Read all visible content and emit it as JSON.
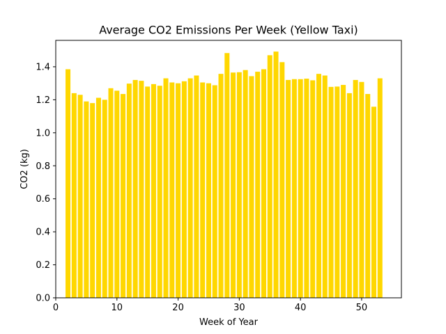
{
  "chart_data": {
    "type": "bar",
    "title": "Average CO2 Emissions Per Week (Yellow Taxi)",
    "xlabel": "Week of Year",
    "ylabel": "CO2 (kg)",
    "bar_color": "#FFD700",
    "xlim": [
      0,
      56.5
    ],
    "ylim": [
      0,
      1.56
    ],
    "x_ticks": [
      0,
      10,
      20,
      30,
      40,
      50
    ],
    "y_ticks": [
      0.0,
      0.2,
      0.4,
      0.6,
      0.8,
      1.0,
      1.2,
      1.4
    ],
    "x_tick_labels": [
      "0",
      "10",
      "20",
      "30",
      "40",
      "50"
    ],
    "y_tick_labels": [
      "0.0",
      "0.2",
      "0.4",
      "0.6",
      "0.8",
      "1.0",
      "1.2",
      "1.4"
    ],
    "grid": false,
    "x": [
      2,
      3,
      4,
      5,
      6,
      7,
      8,
      9,
      10,
      11,
      12,
      13,
      14,
      15,
      16,
      17,
      18,
      19,
      20,
      21,
      22,
      23,
      24,
      25,
      26,
      27,
      28,
      29,
      30,
      31,
      32,
      33,
      34,
      35,
      36,
      37,
      38,
      39,
      40,
      41,
      42,
      43,
      44,
      45,
      46,
      47,
      48,
      49,
      50,
      51,
      52,
      53
    ],
    "values": [
      1.385,
      1.24,
      1.23,
      1.19,
      1.18,
      1.212,
      1.2,
      1.27,
      1.255,
      1.235,
      1.298,
      1.32,
      1.315,
      1.28,
      1.295,
      1.285,
      1.33,
      1.305,
      1.3,
      1.312,
      1.33,
      1.347,
      1.305,
      1.3,
      1.288,
      1.357,
      1.483,
      1.365,
      1.367,
      1.38,
      1.343,
      1.37,
      1.385,
      1.47,
      1.492,
      1.428,
      1.32,
      1.325,
      1.325,
      1.328,
      1.318,
      1.357,
      1.347,
      1.278,
      1.28,
      1.29,
      1.24,
      1.32,
      1.308,
      1.235,
      1.158,
      1.33
    ]
  }
}
